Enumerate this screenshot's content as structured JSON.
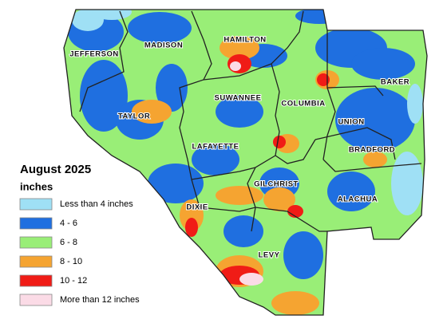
{
  "title": "August 2025",
  "units": "inches",
  "legend": [
    {
      "label": "Less than 4 inches",
      "color": "#9fe0f5"
    },
    {
      "label": "4 - 6",
      "color": "#1f6fe0"
    },
    {
      "label": "6 - 8",
      "color": "#99ee77"
    },
    {
      "label": "8 - 10",
      "color": "#f5a431"
    },
    {
      "label": "10 - 12",
      "color": "#f01c16"
    },
    {
      "label": "More than 12 inches",
      "color": "#fbdbe6"
    }
  ],
  "counties": [
    "JEFFERSON",
    "MADISON",
    "HAMILTON",
    "SUWANNEE",
    "COLUMBIA",
    "BAKER",
    "TAYLOR",
    "UNION",
    "BRADFORD",
    "LAFAYETTE",
    "GILCHRIST",
    "ALACHUA",
    "DIXIE",
    "LEVY"
  ]
}
